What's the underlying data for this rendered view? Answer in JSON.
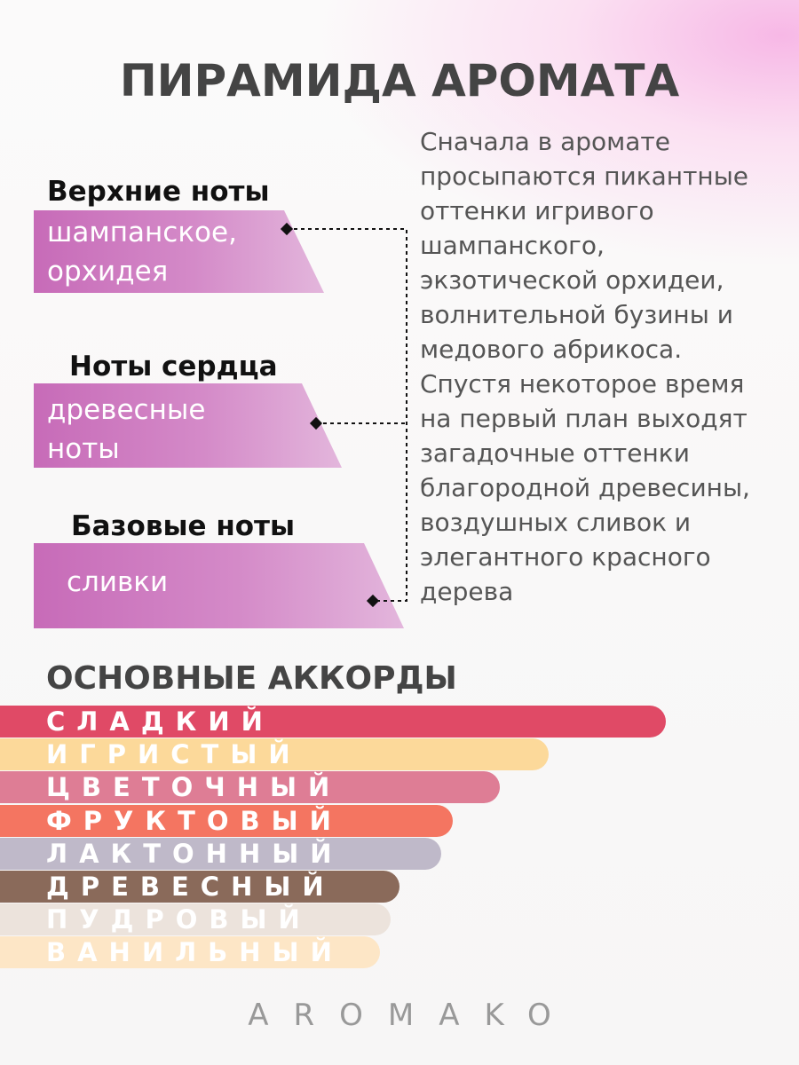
{
  "header": {
    "title": "ПИРАМИДА АРОМАТА"
  },
  "pyramid": [
    {
      "label": "Верхние ноты",
      "notes": "шампанское, орхидея"
    },
    {
      "label": "Ноты сердца",
      "notes": "древесные ноты"
    },
    {
      "label": "Базовые ноты",
      "notes": "сливки"
    }
  ],
  "description": "Сначала в аромате просыпаются пикантные оттенки игривого шампанского, экзотической орхидеи, волнительной бузины и медового абрикоса. Спустя некоторое время на первый план выходят загадочные оттенки благородной древесины, воздушных сливок и элегантного красного дерева",
  "accords": {
    "title": "ОСНОВНЫЕ АККОРДЫ",
    "items": [
      "СЛАДКИЙ",
      "ИГРИСТЫЙ",
      "ЦВЕТОЧНЫЙ",
      "ФРУКТОВЫЙ",
      "ЛАКТОННЫЙ",
      "ДРЕВЕСНЫЙ",
      "ПУДРОВЫЙ",
      "ВАНИЛЬНЫЙ"
    ]
  },
  "brand": "AROMAKO"
}
